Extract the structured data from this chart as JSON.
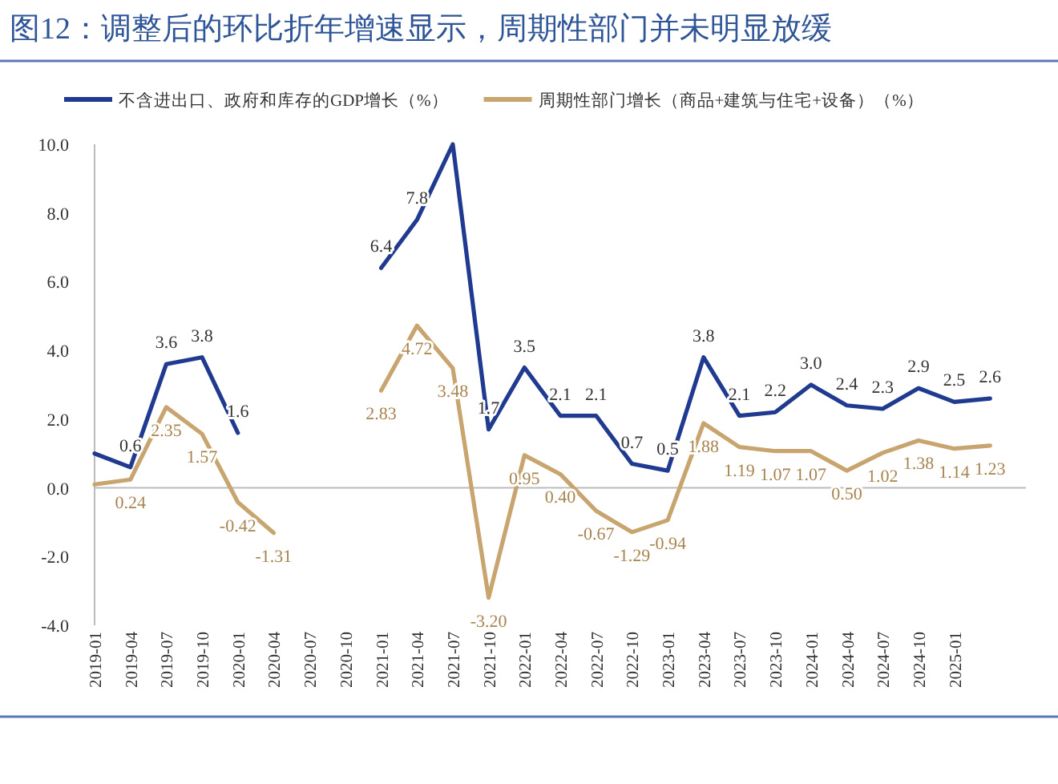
{
  "chart_data": {
    "type": "line",
    "title": "图12：调整后的环比折年增速显示，周期性部门并未明显放缓",
    "categories": [
      "2019-01",
      "2019-04",
      "2019-07",
      "2019-10",
      "2020-01",
      "2020-04",
      "2020-07",
      "2020-10",
      "2021-01",
      "2021-04",
      "2021-07",
      "2021-10",
      "2022-01",
      "2022-04",
      "2022-07",
      "2022-10",
      "2023-01",
      "2023-04",
      "2023-07",
      "2023-10",
      "2024-01",
      "2024-04",
      "2024-07",
      "2024-10",
      "2025-01",
      null
    ],
    "series": [
      {
        "name": "不含进出口、政府和库存的GDP增长（%）",
        "color": "#1f3a8f",
        "values": [
          1.0,
          0.6,
          3.6,
          3.8,
          1.6,
          null,
          null,
          null,
          6.4,
          7.8,
          10.0,
          1.7,
          3.5,
          2.1,
          2.1,
          0.7,
          0.5,
          3.8,
          2.1,
          2.2,
          3.0,
          2.4,
          2.3,
          2.9,
          2.5,
          2.6
        ],
        "value_labels": [
          null,
          "0.6",
          "3.6",
          "3.8",
          "1.6",
          null,
          null,
          null,
          "6.4",
          "7.8",
          null,
          "1.7",
          "3.5",
          "2.1",
          "2.1",
          "0.7",
          "0.5",
          "3.8",
          "2.1",
          "2.2",
          "3.0",
          "2.4",
          "2.3",
          "2.9",
          "2.5",
          "2.6"
        ]
      },
      {
        "name": "周期性部门增长（商品+建筑与住宅+设备）（%）",
        "color": "#c8a46e",
        "values": [
          0.1,
          0.24,
          2.35,
          1.57,
          -0.42,
          -1.31,
          null,
          null,
          2.83,
          4.72,
          3.48,
          -3.2,
          0.95,
          0.4,
          -0.67,
          -1.29,
          -0.94,
          1.88,
          1.19,
          1.07,
          1.07,
          0.5,
          1.02,
          1.38,
          1.14,
          1.23
        ],
        "value_labels": [
          null,
          "0.24",
          "2.35",
          "1.57",
          "-0.42",
          "-1.31",
          null,
          null,
          "2.83",
          "4.72",
          "3.48",
          "-3.20",
          "0.95",
          "0.40",
          "-0.67",
          "-1.29",
          "-0.94",
          "1.88",
          "1.19",
          "1.07",
          "1.07",
          "0.50",
          "1.02",
          "1.38",
          "1.14",
          "1.23"
        ]
      }
    ],
    "ylim": [
      -4,
      10
    ],
    "yticks": [
      {
        "value": -4,
        "label": "-4.0"
      },
      {
        "value": -2,
        "label": "-2.0"
      },
      {
        "value": 0,
        "label": "0.0"
      },
      {
        "value": 2,
        "label": "2.0"
      },
      {
        "value": 4,
        "label": "4.0"
      },
      {
        "value": 6,
        "label": "6.0"
      },
      {
        "value": 8,
        "label": "8.0"
      },
      {
        "value": 10,
        "label": "10.0"
      }
    ],
    "ref_lines": [
      {
        "axis": "y",
        "value": 0,
        "color": "#bbbbbb"
      }
    ],
    "legend": "top",
    "grid": false,
    "marker": "none",
    "line_style": "solid"
  }
}
